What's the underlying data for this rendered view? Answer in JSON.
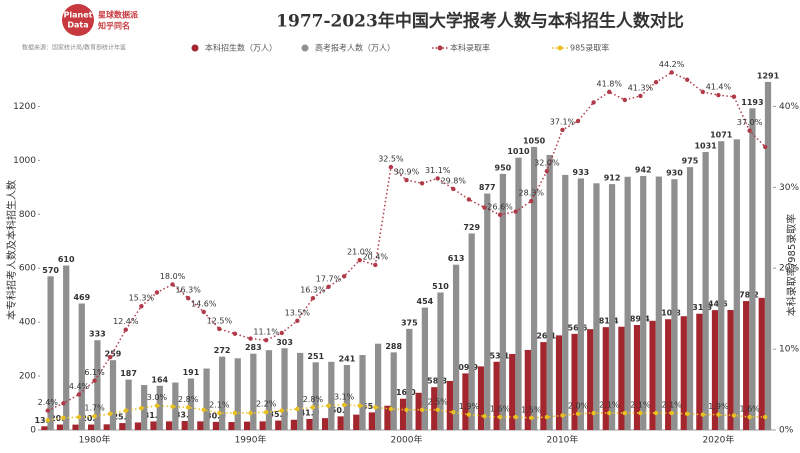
{
  "logo": {
    "line1": "Planet",
    "line2": "Data",
    "name": "星球数据派",
    "sub": "知乎同名"
  },
  "source": "数据来源：国家统计局/教育部统计年鉴",
  "chart_data": {
    "type": "bar-line",
    "title": "1977-2023年中国大学报考人数与本科招生人数对比",
    "y_label": "本专科招考人数及本科招生人数",
    "y2_label": "本科录取率/985录取率",
    "categories": [
      null,
      null,
      null,
      "1980年",
      null,
      null,
      null,
      null,
      null,
      null,
      null,
      null,
      null,
      "1990年",
      null,
      null,
      null,
      null,
      null,
      null,
      null,
      null,
      null,
      "2000年",
      null,
      null,
      null,
      null,
      null,
      null,
      null,
      null,
      null,
      "2010年",
      null,
      null,
      null,
      null,
      null,
      null,
      null,
      null,
      null,
      "2020年",
      null,
      null,
      null
    ],
    "ylim": [
      0,
      1350
    ],
    "yticks": [
      0,
      200,
      400,
      600,
      800,
      1000,
      1200
    ],
    "y2lim": [
      0,
      45
    ],
    "y2ticks": [
      {
        "value": 0,
        "label": "0%"
      },
      {
        "value": 10,
        "label": "10%"
      },
      {
        "value": 20,
        "label": "20%"
      },
      {
        "value": 30,
        "label": "30%"
      },
      {
        "value": 40,
        "label": "40%"
      }
    ],
    "grid": false,
    "series": [
      {
        "name": "本科招生数（万人）",
        "kind": "bar",
        "color": "#a3262e",
        "values": [
          13.7,
          20.4,
          20.0,
          20.3,
          21.0,
          25.6,
          28.0,
          31.7,
          32.0,
          33.3,
          32.0,
          30.0,
          29.5,
          31.0,
          32.0,
          35.0,
          38.0,
          41.0,
          44.0,
          50.6,
          57.0,
          65.3,
          90.0,
          116.0,
          138.0,
          158.8,
          182.0,
          209.9,
          236.0,
          253.1,
          282.0,
          297.0,
          326.1,
          351.0,
          356.6,
          374.0,
          381.4,
          383.0,
          389.4,
          405.0,
          410.8,
          422.0,
          431.3,
          444.6,
          445.0,
          478.2,
          490.0
        ],
        "value_labels": [
          "13.7",
          "20.4",
          null,
          "20.3",
          null,
          "25.6",
          null,
          "31.7",
          null,
          "33.3",
          null,
          "30.0",
          null,
          null,
          null,
          "35.0",
          null,
          "41.0",
          null,
          "50.6",
          null,
          "65.3",
          null,
          "116.0",
          null,
          "158.8",
          null,
          "209.9",
          null,
          "253.1",
          null,
          null,
          "326.1",
          null,
          "356.6",
          null,
          "381.4",
          null,
          "389.4",
          null,
          "410.8",
          null,
          "431.3",
          "444.6",
          null,
          "478.2",
          null
        ]
      },
      {
        "name": "高考报考人数（万人）",
        "kind": "bar",
        "color": "#8f8f8f",
        "values": [
          570,
          610,
          469,
          333,
          259,
          187,
          167,
          164,
          176,
          191,
          228,
          272,
          266,
          283,
          296,
          303,
          286,
          251,
          253,
          241,
          278,
          320,
          288,
          375,
          454,
          510,
          613,
          729,
          877,
          950,
          1010,
          1050,
          1020,
          946,
          933,
          915,
          912,
          939,
          942,
          940,
          930,
          975,
          1031,
          1071,
          1078,
          1193,
          1291
        ],
        "value_labels": [
          "570",
          "610",
          "469",
          "333",
          "259",
          "187",
          null,
          "164",
          null,
          "191",
          null,
          "272",
          null,
          "283",
          null,
          "303",
          null,
          "251",
          null,
          "241",
          null,
          null,
          "288",
          "375",
          "454",
          "510",
          "613",
          "729",
          "877",
          "950",
          "1010",
          "1050",
          null,
          null,
          "933",
          null,
          "912",
          null,
          "942",
          null,
          "930",
          "975",
          "1031",
          "1071",
          null,
          "1193",
          "1291"
        ]
      },
      {
        "name": "本科录取率",
        "kind": "line",
        "axis": "y2",
        "color": "#b03a48",
        "values": [
          2.4,
          3.3,
          4.4,
          6.1,
          9.0,
          12.4,
          15.3,
          17.0,
          18.0,
          16.3,
          14.6,
          12.5,
          11.9,
          11.3,
          11.1,
          12.0,
          13.5,
          16.3,
          17.7,
          19.0,
          21.0,
          20.4,
          32.5,
          30.9,
          30.5,
          31.1,
          29.8,
          28.5,
          27.5,
          26.6,
          27.0,
          28.3,
          32.0,
          37.1,
          38.2,
          40.5,
          41.8,
          40.8,
          41.3,
          43.0,
          44.2,
          43.3,
          41.8,
          41.4,
          41.2,
          37.0,
          35.0
        ],
        "value_labels": [
          "2.4%",
          null,
          "4.4%",
          "6.1%",
          null,
          "12.4%",
          "15.3%",
          null,
          "18.0%",
          "16.3%",
          "14.6%",
          "12.5%",
          null,
          null,
          "11.1%",
          null,
          "13.5%",
          "16.3%",
          "17.7%",
          null,
          "21.0%",
          "20.4%",
          "32.5%",
          "30.9%",
          null,
          "31.1%",
          "29.8%",
          null,
          null,
          "26.6%",
          null,
          "28.3%",
          "32.0%",
          "37.1%",
          null,
          null,
          "41.8%",
          null,
          "41.3%",
          null,
          "44.2%",
          null,
          null,
          "41.4%",
          null,
          "37.0%",
          null
        ]
      },
      {
        "name": "985录取率",
        "kind": "line",
        "axis": "y2",
        "color": "#e8c020",
        "values": [
          1.2,
          1.5,
          1.6,
          1.7,
          2.0,
          2.4,
          2.7,
          3.0,
          2.9,
          2.8,
          2.5,
          2.1,
          2.1,
          2.1,
          2.2,
          2.4,
          2.6,
          2.8,
          3.0,
          3.1,
          3.0,
          2.8,
          2.6,
          2.5,
          2.5,
          2.5,
          2.2,
          1.9,
          1.7,
          1.6,
          1.6,
          1.5,
          1.6,
          1.8,
          2.0,
          2.1,
          2.1,
          2.1,
          2.1,
          2.1,
          2.1,
          2.0,
          1.9,
          1.9,
          1.8,
          1.6,
          1.6
        ],
        "value_labels": [
          null,
          null,
          null,
          "1.7%",
          null,
          null,
          null,
          "3.0%",
          null,
          "2.8%",
          null,
          "2.1%",
          null,
          null,
          "2.2%",
          null,
          null,
          "2.8%",
          null,
          "3.1%",
          null,
          null,
          null,
          null,
          null,
          "2.5%",
          null,
          "1.9%",
          null,
          "1.6%",
          null,
          "1.5%",
          null,
          null,
          "2.0%",
          null,
          "2.1%",
          null,
          "2.1%",
          null,
          "2.1%",
          null,
          null,
          "1.9%",
          null,
          "1.6%",
          null
        ]
      }
    ]
  }
}
